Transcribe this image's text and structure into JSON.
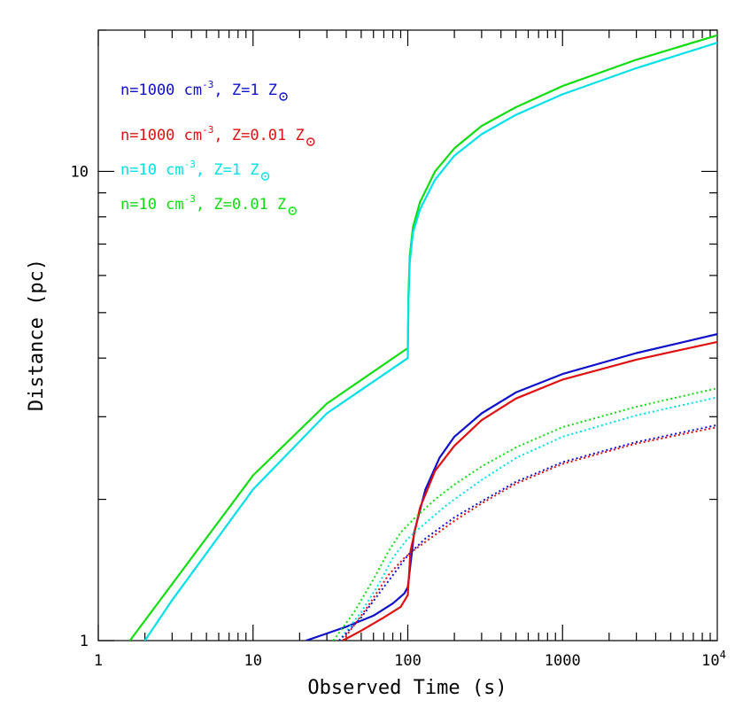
{
  "chart_data": {
    "type": "line",
    "title": "",
    "xlabel": "Observed Time (s)",
    "ylabel": "Distance (pc)",
    "xscale": "log",
    "yscale": "log",
    "xlim": [
      1,
      10000
    ],
    "ylim": [
      1,
      20
    ],
    "x_tick_labels": [
      {
        "value": 1,
        "label": "1"
      },
      {
        "value": 10,
        "label": "10"
      },
      {
        "value": 100,
        "label": "100"
      },
      {
        "value": 1000,
        "label": "1000"
      },
      {
        "value": 10000,
        "label": "10",
        "exponent": "4"
      }
    ],
    "y_tick_labels": [
      {
        "value": 1,
        "label": "1"
      },
      {
        "value": 10,
        "label": "10"
      }
    ],
    "legend": [
      {
        "color": "#1010cc",
        "text": "n=1000 cm",
        "sup": "-3",
        "mid": ", Z=1 Z"
      },
      {
        "color": "#e01010",
        "text": "n=1000 cm",
        "sup": "-3",
        "mid": ", Z=0.01 Z"
      },
      {
        "color": "#00e0e8",
        "text": "n=10 cm",
        "sup": "-3",
        "mid": ", Z=1 Z"
      },
      {
        "color": "#10dd10",
        "text": "n=10 cm",
        "sup": "-3",
        "mid": ", Z=0.01 Z"
      }
    ],
    "series": [
      {
        "name": "n=10, Z=0.01 solid",
        "color": "#10dd10",
        "dash": "solid",
        "x": [
          1.6,
          3,
          10,
          30,
          100,
          101,
          103,
          108,
          120,
          150,
          200,
          300,
          500,
          1000,
          3000,
          10000
        ],
        "y": [
          1.0,
          1.32,
          2.25,
          3.2,
          4.2,
          5.5,
          6.6,
          7.6,
          8.6,
          10.0,
          11.2,
          12.5,
          13.7,
          15.2,
          17.3,
          19.5
        ]
      },
      {
        "name": "n=10, Z=1 solid",
        "color": "#00e0e8",
        "dash": "solid",
        "x": [
          2.0,
          3,
          10,
          30,
          100,
          101,
          103,
          108,
          120,
          150,
          200,
          300,
          500,
          1000,
          3000,
          10000
        ],
        "y": [
          1.0,
          1.22,
          2.1,
          3.05,
          4.0,
          5.3,
          6.4,
          7.4,
          8.3,
          9.6,
          10.8,
          12.0,
          13.2,
          14.6,
          16.6,
          18.8
        ]
      },
      {
        "name": "n=1000, Z=1 solid",
        "color": "#1010cc",
        "dash": "solid",
        "x": [
          22,
          40,
          60,
          80,
          95,
          100,
          110,
          130,
          160,
          200,
          300,
          500,
          1000,
          3000,
          10000
        ],
        "y": [
          1.0,
          1.07,
          1.13,
          1.2,
          1.26,
          1.3,
          1.7,
          2.1,
          2.45,
          2.72,
          3.05,
          3.38,
          3.7,
          4.1,
          4.5
        ]
      },
      {
        "name": "n=1000, Z=0.01 solid",
        "color": "#e01010",
        "dash": "solid",
        "x": [
          38,
          50,
          70,
          90,
          100,
          104,
          120,
          150,
          200,
          300,
          500,
          1000,
          3000,
          10000
        ],
        "y": [
          1.0,
          1.05,
          1.12,
          1.18,
          1.25,
          1.55,
          1.92,
          2.3,
          2.6,
          2.95,
          3.28,
          3.6,
          3.97,
          4.33
        ]
      },
      {
        "name": "n=10, Z=0.01 dotted",
        "color": "#10dd10",
        "dash": "dotted",
        "x": [
          33,
          45,
          60,
          75,
          90,
          110,
          150,
          200,
          300,
          500,
          1000,
          3000,
          10000
        ],
        "y": [
          1.0,
          1.15,
          1.35,
          1.55,
          1.7,
          1.82,
          2.0,
          2.15,
          2.35,
          2.58,
          2.85,
          3.15,
          3.45
        ]
      },
      {
        "name": "n=10, Z=1 dotted",
        "color": "#00e0e8",
        "dash": "dotted",
        "x": [
          36,
          50,
          65,
          80,
          100,
          130,
          170,
          200,
          300,
          500,
          1000,
          3000,
          10000
        ],
        "y": [
          1.0,
          1.15,
          1.32,
          1.5,
          1.65,
          1.78,
          1.92,
          2.0,
          2.2,
          2.45,
          2.72,
          3.02,
          3.3
        ]
      },
      {
        "name": "n=1000, Z=1 dotted",
        "color": "#1010cc",
        "dash": "dotted",
        "x": [
          36,
          50,
          70,
          90,
          100,
          130,
          200,
          300,
          500,
          1000,
          3000,
          10000
        ],
        "y": [
          1.0,
          1.12,
          1.3,
          1.45,
          1.52,
          1.65,
          1.83,
          1.98,
          2.18,
          2.4,
          2.65,
          2.88
        ]
      },
      {
        "name": "n=1000, Z=0.01 dotted",
        "color": "#e01010",
        "dash": "dotted",
        "x": [
          38,
          55,
          75,
          95,
          110,
          150,
          200,
          300,
          500,
          1000,
          3000,
          10000
        ],
        "y": [
          1.0,
          1.18,
          1.38,
          1.5,
          1.56,
          1.68,
          1.8,
          1.96,
          2.16,
          2.38,
          2.63,
          2.85
        ]
      }
    ]
  }
}
